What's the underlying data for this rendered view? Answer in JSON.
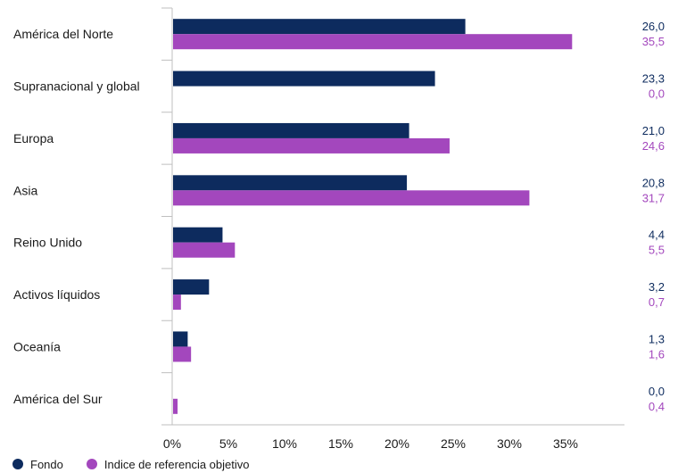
{
  "chart_data": {
    "type": "bar",
    "orientation": "horizontal",
    "categories": [
      "América del Norte",
      "Supranacional y global",
      "Europa",
      "Asia",
      "Reino Unido",
      "Activos líquidos",
      "Oceanía",
      "América del Sur"
    ],
    "series": [
      {
        "name": "Fondo",
        "color": "#0d2b5e",
        "values": [
          26.0,
          23.3,
          21.0,
          20.8,
          4.4,
          3.2,
          1.3,
          0.0
        ]
      },
      {
        "name": "Indice de referencia objetivo",
        "color": "#a347bd",
        "values": [
          35.5,
          0.0,
          24.6,
          31.7,
          5.5,
          0.7,
          1.6,
          0.4
        ]
      }
    ],
    "value_labels": [
      [
        "26,0",
        "23,3",
        "21,0",
        "20,8",
        "4,4",
        "3,2",
        "1,3",
        "0,0"
      ],
      [
        "35,5",
        "0,0",
        "24,6",
        "31,7",
        "5,5",
        "0,7",
        "1,6",
        "0,4"
      ]
    ],
    "xticks": [
      "0%",
      "5%",
      "10%",
      "15%",
      "20%",
      "25%",
      "30%",
      "35%"
    ],
    "xlim": [
      0,
      40
    ],
    "grid": false,
    "legend_position": "bottom-left"
  }
}
